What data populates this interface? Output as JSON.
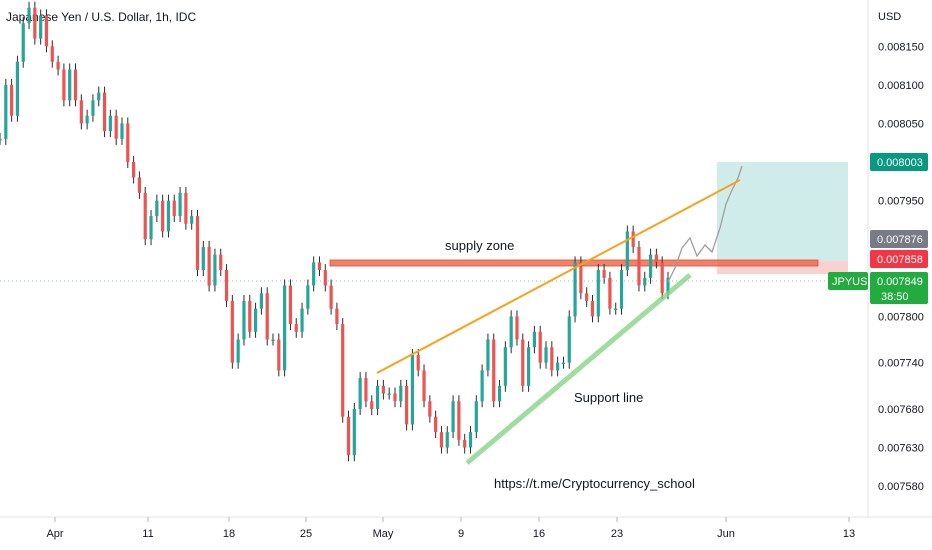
{
  "header": {
    "title": "Japanese Yen / U.S. Dollar, 1h, IDC"
  },
  "colors": {
    "up": "#26a69a",
    "down": "#ef5350",
    "wick": "#2b2b2b",
    "supply": "#ef6c50",
    "trend": "#f7a21b",
    "support": "#7fd17f",
    "target": "#bfe6e3",
    "stop": "#f8c9c9",
    "projection": "#9e9e9e",
    "tag_green": "#089981",
    "tag_gray": "#787b86",
    "tag_red": "#f23645",
    "tag_symbol": "#22ab3f"
  },
  "chart_data": {
    "type": "line",
    "title": "Japanese Yen / U.S. Dollar, 1h, IDC",
    "currency": "USD",
    "x_ticks": [
      "Apr",
      "11",
      "18",
      "25",
      "May",
      "9",
      "16",
      "23",
      "Jun",
      "13"
    ],
    "y_ticks": [
      "0.008150",
      "0.008100",
      "0.008050",
      "0.007950",
      "0.007800",
      "0.007740",
      "0.007680",
      "0.007630",
      "0.007580"
    ],
    "ylim": [
      0.00754,
      0.00821
    ],
    "grid": false,
    "series": [
      {
        "values": [
          0.00803,
          0.0081,
          0.00806,
          0.00813,
          0.00818,
          0.0082,
          0.00816,
          0.00819,
          0.00815,
          0.00813,
          0.00812,
          0.00808,
          0.00812,
          0.00808,
          0.00805,
          0.00806,
          0.00808,
          0.00809,
          0.00804,
          0.00806,
          0.00803,
          0.00805,
          0.008,
          0.00798,
          0.00796,
          0.0079,
          0.00793,
          0.00795,
          0.00791,
          0.00795,
          0.00793,
          0.00796,
          0.00792,
          0.00793,
          0.00786,
          0.00789,
          0.00784,
          0.00788,
          0.00786,
          0.00782,
          0.00774,
          0.00777,
          0.00782,
          0.00778,
          0.00781,
          0.00783,
          0.00777,
          0.00777,
          0.00773,
          0.00784,
          0.00779,
          0.00778,
          0.00781,
          0.00784,
          0.00787,
          0.00786,
          0.00784,
          0.00781,
          0.00779,
          0.00767,
          0.00762,
          0.00768,
          0.00772,
          0.00769,
          0.00768,
          0.00771,
          0.0077,
          0.0077,
          0.00769,
          0.00771,
          0.00766,
          0.00775,
          0.00773,
          0.00769,
          0.00767,
          0.00765,
          0.00763,
          0.00765,
          0.00769,
          0.00764,
          0.00763,
          0.00765,
          0.00769,
          0.00773,
          0.00777,
          0.00769,
          0.00771,
          0.00776,
          0.0078,
          0.00777,
          0.00771,
          0.00776,
          0.00778,
          0.00774,
          0.00776,
          0.00773,
          0.00774,
          0.00774,
          0.0078,
          0.00787,
          0.00783,
          0.00782,
          0.0078,
          0.00786,
          0.00785,
          0.00781,
          0.00781,
          0.00786,
          0.00791,
          0.00789,
          0.00784,
          0.00785,
          0.00788,
          0.00787,
          0.00783,
          0.00785
        ]
      }
    ],
    "markers": {
      "last_price": "0.007849",
      "countdown": "38:50",
      "target": "0.008003",
      "entry": "0.007876",
      "stop": "0.007858",
      "symbol": "JPYUSD"
    },
    "annotations": {
      "supply": "supply zone",
      "support": "Support line",
      "link": "https://t.me/Cryptocurrency_school"
    }
  }
}
